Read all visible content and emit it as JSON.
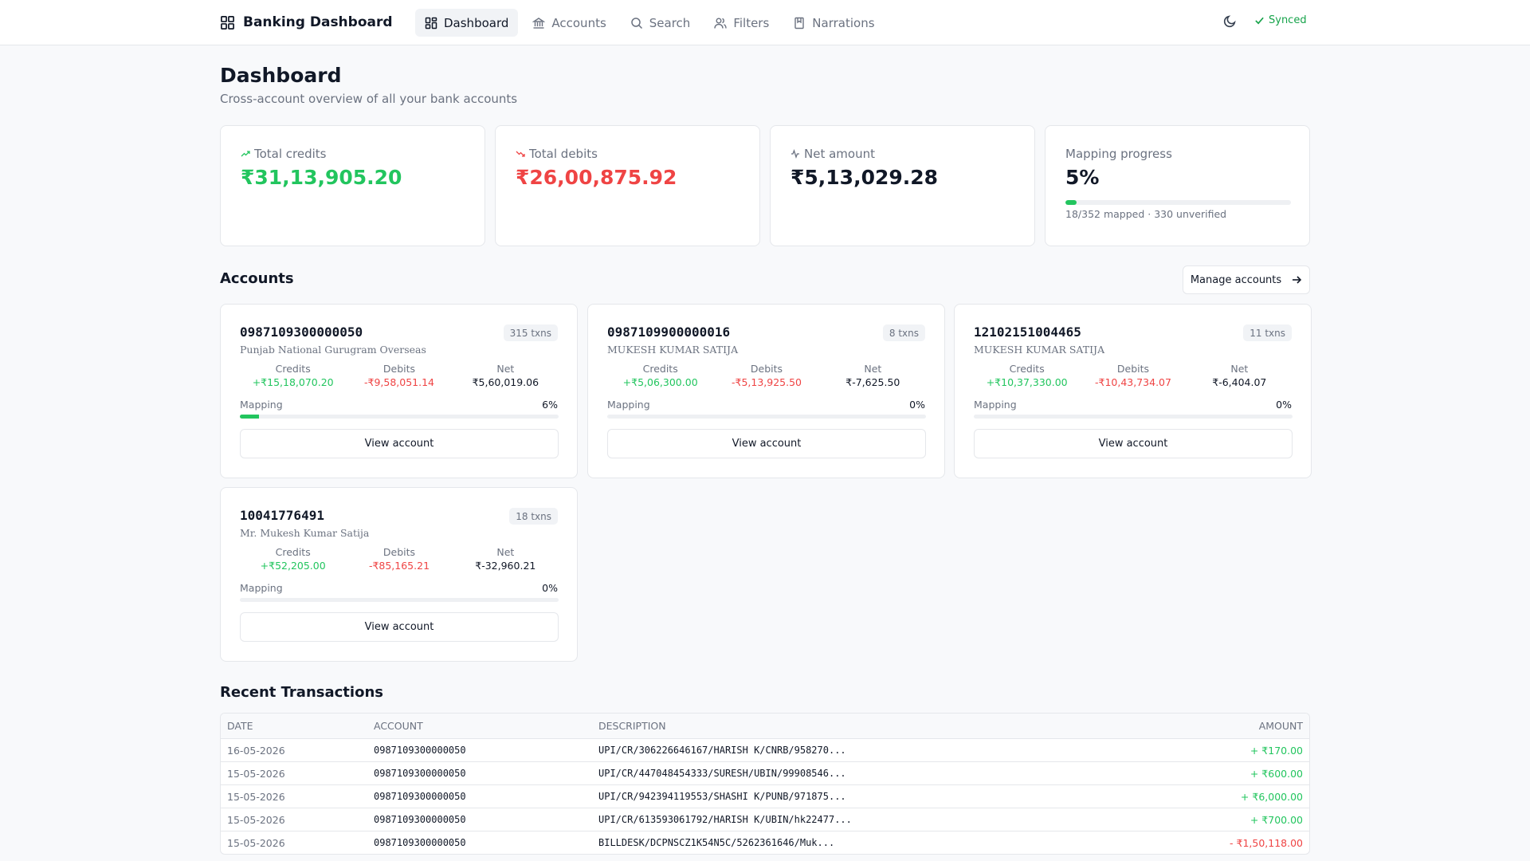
{
  "app": {
    "title": "Banking Dashboard",
    "status": "Synced"
  },
  "nav": {
    "items": [
      {
        "label": "Dashboard",
        "icon": "dashboard-icon",
        "active": true
      },
      {
        "label": "Accounts",
        "icon": "bank-icon"
      },
      {
        "label": "Search",
        "icon": "search-icon"
      },
      {
        "label": "Filters",
        "icon": "users-icon"
      },
      {
        "label": "Narrations",
        "icon": "bookmark-icon"
      }
    ]
  },
  "page": {
    "title": "Dashboard",
    "subtitle": "Cross-account overview of all your bank accounts"
  },
  "stats": {
    "credits": {
      "label": "Total credits",
      "value": "₹31,13,905.20",
      "icon": "trending-up-icon"
    },
    "debits": {
      "label": "Total debits",
      "value": "₹26,00,875.92",
      "icon": "trending-down-icon"
    },
    "net": {
      "label": "Net amount",
      "value": "₹5,13,029.28",
      "icon": "activity-icon"
    },
    "mapping": {
      "label": "Mapping progress",
      "value": "5%",
      "progress": 0.05,
      "note": "18/352 mapped · 330 unverified"
    }
  },
  "accounts_section": {
    "title": "Accounts",
    "manage_label": "Manage accounts"
  },
  "accounts": [
    {
      "number": "0987109300000050",
      "holder": "Punjab National Gurugram Overseas",
      "txns": "315 txns",
      "credits_label": "Credits",
      "credits": "+₹15,18,070.20",
      "debits_label": "Debits",
      "debits": "-₹9,58,051.14",
      "net_label": "Net",
      "net": "₹5,60,019.06",
      "mapping_label": "Mapping",
      "mapping_pct": "6%",
      "mapping": 0.06,
      "view_label": "View account"
    },
    {
      "number": "0987109900000016",
      "holder": "MUKESH KUMAR SATIJA",
      "txns": "8 txns",
      "credits_label": "Credits",
      "credits": "+₹5,06,300.00",
      "debits_label": "Debits",
      "debits": "-₹5,13,925.50",
      "net_label": "Net",
      "net": "₹-7,625.50",
      "mapping_label": "Mapping",
      "mapping_pct": "0%",
      "mapping": 0,
      "view_label": "View account"
    },
    {
      "number": "12102151004465",
      "holder": "MUKESH KUMAR SATIJA",
      "txns": "11 txns",
      "credits_label": "Credits",
      "credits": "+₹10,37,330.00",
      "debits_label": "Debits",
      "debits": "-₹10,43,734.07",
      "net_label": "Net",
      "net": "₹-6,404.07",
      "mapping_label": "Mapping",
      "mapping_pct": "0%",
      "mapping": 0,
      "view_label": "View account"
    },
    {
      "number": "10041776491",
      "holder": "Mr. Mukesh Kumar Satija",
      "txns": "18 txns",
      "credits_label": "Credits",
      "credits": "+₹52,205.00",
      "debits_label": "Debits",
      "debits": "-₹85,165.21",
      "net_label": "Net",
      "net": "₹-32,960.21",
      "mapping_label": "Mapping",
      "mapping_pct": "0%",
      "mapping": 0,
      "view_label": "View account"
    }
  ],
  "transactions": {
    "title": "Recent Transactions",
    "columns": [
      "DATE",
      "ACCOUNT",
      "DESCRIPTION",
      "AMOUNT"
    ],
    "rows": [
      {
        "date": "16-05-2026",
        "account": "0987109300000050",
        "description": "UPI/CR/306226646167/HARISH K/CNRB/958270...",
        "amount": "+ ₹170.00",
        "type": "credit"
      },
      {
        "date": "15-05-2026",
        "account": "0987109300000050",
        "description": "UPI/CR/447048454333/SURESH/UBIN/99908546...",
        "amount": "+ ₹600.00",
        "type": "credit"
      },
      {
        "date": "15-05-2026",
        "account": "0987109300000050",
        "description": "UPI/CR/942394119553/SHASHI K/PUNB/971875...",
        "amount": "+ ₹6,000.00",
        "type": "credit"
      },
      {
        "date": "15-05-2026",
        "account": "0987109300000050",
        "description": "UPI/CR/613593061792/HARISH K/UBIN/hk22477...",
        "amount": "+ ₹700.00",
        "type": "credit"
      },
      {
        "date": "15-05-2026",
        "account": "0987109300000050",
        "description": "BILLDESK/DCPNSCZ1K54N5C/5262361646/Muk...",
        "amount": "- ₹1,50,118.00",
        "type": "debit"
      }
    ]
  },
  "colors": {
    "credit": "#22c55e",
    "debit": "#ef4444",
    "accent": "#16a34a"
  }
}
